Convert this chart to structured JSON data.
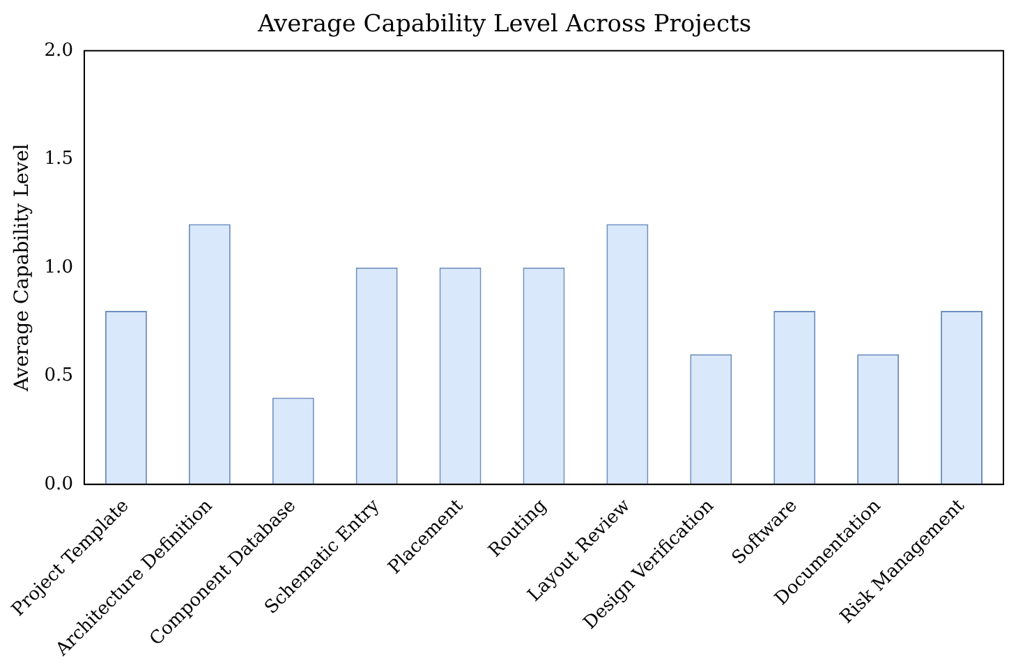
{
  "chart_data": {
    "type": "bar",
    "title": "Average Capability Level Across Projects",
    "ylabel": "Average Capability Level",
    "categories": [
      "Project Template",
      "Architecture Definition",
      "Component Database",
      "Schematic Entry",
      "Placement",
      "Routing",
      "Layout Review",
      "Design Verification",
      "Software",
      "Documentation",
      "Risk Management"
    ],
    "values": [
      0.8,
      1.2,
      0.4,
      1.0,
      1.0,
      1.0,
      1.2,
      0.6,
      0.8,
      0.6,
      0.8
    ],
    "color": "#dae8fc",
    "ylim": [
      0,
      2
    ],
    "yticks": [
      {
        "value": 0,
        "label": "0.0"
      },
      {
        "value": 0.5,
        "label": "0.5"
      },
      {
        "value": 1,
        "label": "1.0"
      },
      {
        "value": 1.5,
        "label": "1.5"
      },
      {
        "value": 2,
        "label": "2.0"
      }
    ],
    "grid": false
  }
}
